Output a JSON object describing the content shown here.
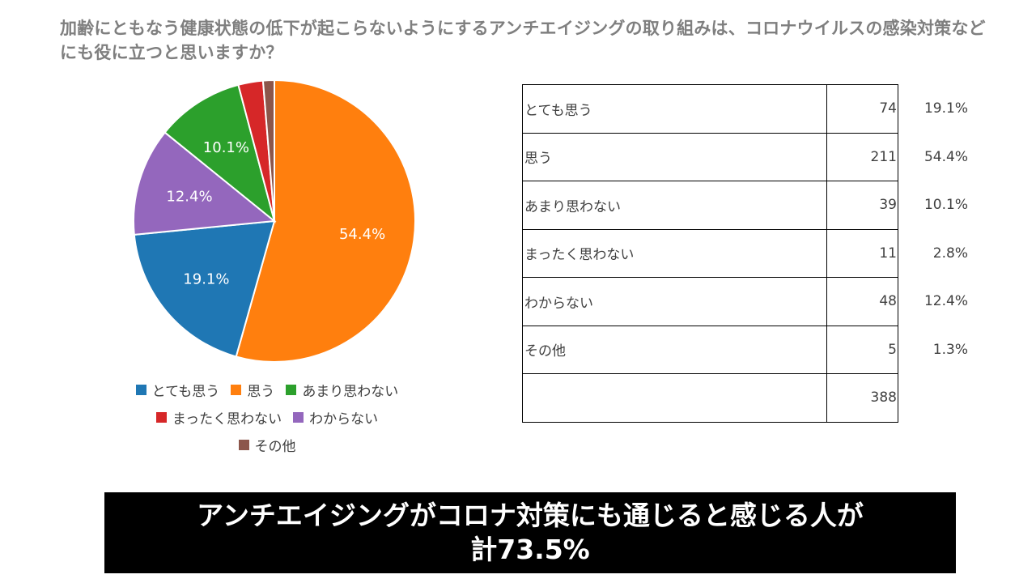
{
  "question": "加齢にともなう健康状態の低下が起こらないようにするアンチエイジングの取り組みは、コロナウイルスの感染対策などにも役に立つと思いますか？",
  "chart_data": {
    "type": "pie",
    "slices": [
      {
        "label": "とても思う",
        "count": 74,
        "percent": 19.1,
        "percent_label": "19.1%",
        "color": "#1f77b4",
        "show_label": true
      },
      {
        "label": "思う",
        "count": 211,
        "percent": 54.4,
        "percent_label": "54.4%",
        "color": "#ff7f0e",
        "show_label": true
      },
      {
        "label": "あまり思わない",
        "count": 39,
        "percent": 10.1,
        "percent_label": "10.1%",
        "color": "#2ca02c",
        "show_label": true
      },
      {
        "label": "まったく思わない",
        "count": 11,
        "percent": 2.8,
        "percent_label": "2.8%",
        "color": "#d62728",
        "show_label": false
      },
      {
        "label": "わからない",
        "count": 48,
        "percent": 12.4,
        "percent_label": "12.4%",
        "color": "#9467bd",
        "show_label": true
      },
      {
        "label": "その他",
        "count": 5,
        "percent": 1.3,
        "percent_label": "1.3%",
        "color": "#8c564b",
        "show_label": false
      }
    ],
    "pie_order": [
      "思う",
      "とても思う",
      "わからない",
      "あまり思わない",
      "まったく思わない",
      "その他"
    ],
    "legend_position": "bottom",
    "legend_rows": [
      [
        "とても思う",
        "思う",
        "あまり思わない"
      ],
      [
        "まったく思わない",
        "わからない"
      ],
      [
        "その他"
      ]
    ],
    "total": "388"
  },
  "conclusion": {
    "line1": "アンチエイジングがコロナ対策にも通じると感じる人が",
    "line2": "計73.5%"
  }
}
